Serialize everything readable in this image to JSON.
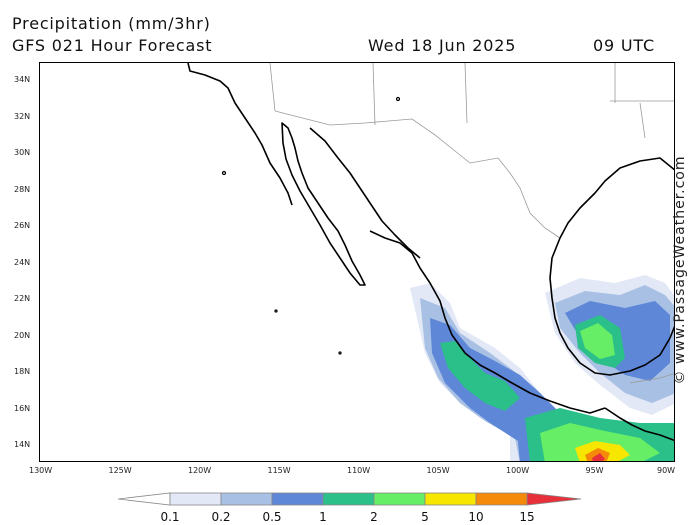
{
  "header": {
    "title": "Precipitation (mm/3hr)",
    "subtitle": "GFS 021 Hour Forecast",
    "valid_date": "Wed 18 Jun 2025",
    "valid_hour": "09 UTC"
  },
  "map": {
    "lat_labels": [
      "34N",
      "32N",
      "30N",
      "28N",
      "26N",
      "24N",
      "22N",
      "20N",
      "18N",
      "16N",
      "14N"
    ],
    "lon_labels": [
      "130W",
      "125W",
      "120W",
      "115W",
      "110W",
      "105W",
      "100W",
      "95W",
      "90W"
    ],
    "land_outline_color": "#000000",
    "border_color": "#999999",
    "background_color": "#ffffff"
  },
  "legend": {
    "labels": [
      "0.1",
      "0.2",
      "0.5",
      "1",
      "2",
      "5",
      "10",
      "15"
    ],
    "colors": [
      "#ffffff",
      "#e2e8f6",
      "#a8c0e4",
      "#5f87d8",
      "#2bbf8a",
      "#66ee66",
      "#f6e600",
      "#f58a0a",
      "#e8303a"
    ]
  },
  "copyright": "© www.PassageWeather.com"
}
